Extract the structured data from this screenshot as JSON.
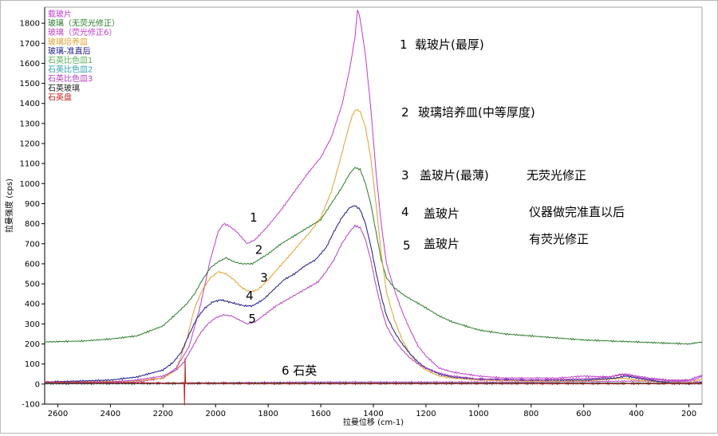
{
  "chart_data": {
    "type": "line",
    "title": "",
    "xlabel": "拉曼位移 (cm-1)",
    "ylabel": "拉曼强度 (cps)",
    "xlim": [
      2650,
      150
    ],
    "ylim": [
      -100,
      1880
    ],
    "x_reversed": true,
    "grid": false,
    "legend_position": "top-left",
    "x_ticks": [
      "2600",
      "2400",
      "2200",
      "2000",
      "1800",
      "1600",
      "1400",
      "1200",
      "1000",
      "800",
      "600",
      "400",
      "200"
    ],
    "y_ticks": [
      "-100",
      "0",
      "100",
      "200",
      "300",
      "400",
      "500",
      "600",
      "700",
      "800",
      "900",
      "1000",
      "1100",
      "1200",
      "1300",
      "1400",
      "1500",
      "1600",
      "1700",
      "1800"
    ],
    "series": [
      {
        "name": "载玻片",
        "color": "#c03cc8",
        "label": "1",
        "points": [
          [
            2650,
            5
          ],
          [
            2300,
            10
          ],
          [
            2200,
            30
          ],
          [
            2150,
            80
          ],
          [
            2100,
            190
          ],
          [
            2060,
            380
          ],
          [
            2020,
            620
          ],
          [
            1990,
            760
          ],
          [
            1970,
            800
          ],
          [
            1950,
            790
          ],
          [
            1920,
            760
          ],
          [
            1880,
            700
          ],
          [
            1850,
            720
          ],
          [
            1800,
            790
          ],
          [
            1750,
            870
          ],
          [
            1700,
            960
          ],
          [
            1650,
            1050
          ],
          [
            1600,
            1130
          ],
          [
            1560,
            1230
          ],
          [
            1520,
            1390
          ],
          [
            1490,
            1570
          ],
          [
            1470,
            1730
          ],
          [
            1460,
            1870
          ],
          [
            1450,
            1820
          ],
          [
            1430,
            1640
          ],
          [
            1410,
            1380
          ],
          [
            1390,
            1060
          ],
          [
            1370,
            800
          ],
          [
            1350,
            600
          ],
          [
            1320,
            470
          ],
          [
            1290,
            360
          ],
          [
            1260,
            270
          ],
          [
            1230,
            190
          ],
          [
            1200,
            140
          ],
          [
            1150,
            80
          ],
          [
            1100,
            60
          ],
          [
            1000,
            40
          ],
          [
            900,
            30
          ],
          [
            800,
            30
          ],
          [
            700,
            30
          ],
          [
            600,
            40
          ],
          [
            500,
            35
          ],
          [
            460,
            50
          ],
          [
            420,
            40
          ],
          [
            350,
            25
          ],
          [
            250,
            15
          ],
          [
            180,
            20
          ],
          [
            150,
            40
          ]
        ]
      },
      {
        "name": "玻璃（无荧光修正）",
        "color": "#2a7a2a",
        "label": "2",
        "points": [
          [
            2650,
            210
          ],
          [
            2500,
            215
          ],
          [
            2400,
            225
          ],
          [
            2300,
            240
          ],
          [
            2200,
            290
          ],
          [
            2150,
            350
          ],
          [
            2110,
            400
          ],
          [
            2080,
            450
          ],
          [
            2050,
            520
          ],
          [
            2020,
            580
          ],
          [
            1990,
            610
          ],
          [
            1960,
            630
          ],
          [
            1930,
            610
          ],
          [
            1900,
            600
          ],
          [
            1860,
            600
          ],
          [
            1800,
            650
          ],
          [
            1750,
            700
          ],
          [
            1700,
            740
          ],
          [
            1650,
            780
          ],
          [
            1600,
            820
          ],
          [
            1560,
            900
          ],
          [
            1520,
            980
          ],
          [
            1490,
            1050
          ],
          [
            1470,
            1080
          ],
          [
            1450,
            1070
          ],
          [
            1430,
            1000
          ],
          [
            1410,
            900
          ],
          [
            1390,
            760
          ],
          [
            1370,
            620
          ],
          [
            1350,
            530
          ],
          [
            1320,
            480
          ],
          [
            1280,
            440
          ],
          [
            1240,
            410
          ],
          [
            1200,
            380
          ],
          [
            1150,
            340
          ],
          [
            1100,
            310
          ],
          [
            1000,
            270
          ],
          [
            900,
            250
          ],
          [
            800,
            240
          ],
          [
            700,
            230
          ],
          [
            600,
            220
          ],
          [
            500,
            215
          ],
          [
            400,
            210
          ],
          [
            300,
            205
          ],
          [
            200,
            200
          ],
          [
            150,
            210
          ]
        ]
      },
      {
        "name": "玻璃（荧光修正6）",
        "color": "#c03cc8",
        "points": [
          [
            2650,
            5
          ],
          [
            2200,
            5
          ],
          [
            1600,
            10
          ],
          [
            1200,
            10
          ],
          [
            800,
            10
          ],
          [
            400,
            15
          ],
          [
            150,
            10
          ]
        ]
      },
      {
        "name": "玻璃培养皿",
        "color": "#e0a030",
        "label": "3",
        "points": [
          [
            2650,
            10
          ],
          [
            2300,
            15
          ],
          [
            2200,
            30
          ],
          [
            2150,
            70
          ],
          [
            2110,
            220
          ],
          [
            2080,
            380
          ],
          [
            2050,
            470
          ],
          [
            2020,
            530
          ],
          [
            1990,
            560
          ],
          [
            1960,
            550
          ],
          [
            1930,
            520
          ],
          [
            1900,
            480
          ],
          [
            1870,
            460
          ],
          [
            1840,
            470
          ],
          [
            1800,
            520
          ],
          [
            1760,
            580
          ],
          [
            1720,
            640
          ],
          [
            1680,
            700
          ],
          [
            1640,
            760
          ],
          [
            1600,
            830
          ],
          [
            1560,
            960
          ],
          [
            1530,
            1100
          ],
          [
            1500,
            1250
          ],
          [
            1480,
            1340
          ],
          [
            1465,
            1370
          ],
          [
            1450,
            1360
          ],
          [
            1430,
            1280
          ],
          [
            1410,
            1130
          ],
          [
            1390,
            900
          ],
          [
            1370,
            650
          ],
          [
            1350,
            460
          ],
          [
            1320,
            320
          ],
          [
            1290,
            220
          ],
          [
            1260,
            150
          ],
          [
            1230,
            100
          ],
          [
            1200,
            70
          ],
          [
            1150,
            40
          ],
          [
            1100,
            30
          ],
          [
            1000,
            20
          ],
          [
            800,
            15
          ],
          [
            600,
            15
          ],
          [
            450,
            30
          ],
          [
            400,
            20
          ],
          [
            300,
            10
          ],
          [
            200,
            5
          ],
          [
            150,
            25
          ]
        ]
      },
      {
        "name": "玻璃-准直后",
        "color": "#1a1a8a",
        "label": "4",
        "points": [
          [
            2650,
            10
          ],
          [
            2400,
            20
          ],
          [
            2300,
            35
          ],
          [
            2200,
            70
          ],
          [
            2160,
            110
          ],
          [
            2130,
            160
          ],
          [
            2100,
            250
          ],
          [
            2070,
            330
          ],
          [
            2040,
            380
          ],
          [
            2010,
            410
          ],
          [
            1980,
            420
          ],
          [
            1950,
            410
          ],
          [
            1920,
            400
          ],
          [
            1890,
            390
          ],
          [
            1860,
            390
          ],
          [
            1820,
            420
          ],
          [
            1780,
            470
          ],
          [
            1740,
            520
          ],
          [
            1700,
            550
          ],
          [
            1660,
            590
          ],
          [
            1620,
            620
          ],
          [
            1580,
            680
          ],
          [
            1550,
            760
          ],
          [
            1520,
            830
          ],
          [
            1490,
            880
          ],
          [
            1470,
            890
          ],
          [
            1450,
            870
          ],
          [
            1430,
            800
          ],
          [
            1410,
            690
          ],
          [
            1390,
            560
          ],
          [
            1370,
            440
          ],
          [
            1350,
            340
          ],
          [
            1320,
            260
          ],
          [
            1290,
            200
          ],
          [
            1260,
            150
          ],
          [
            1230,
            110
          ],
          [
            1200,
            80
          ],
          [
            1150,
            50
          ],
          [
            1100,
            35
          ],
          [
            1000,
            25
          ],
          [
            800,
            20
          ],
          [
            600,
            20
          ],
          [
            480,
            30
          ],
          [
            440,
            40
          ],
          [
            400,
            30
          ],
          [
            300,
            10
          ],
          [
            200,
            0
          ],
          [
            150,
            10
          ]
        ]
      },
      {
        "name": "石英比色皿1",
        "color": "#5ab05a",
        "points": [
          [
            2650,
            5
          ],
          [
            2000,
            5
          ],
          [
            1500,
            5
          ],
          [
            1000,
            5
          ],
          [
            500,
            5
          ],
          [
            150,
            5
          ]
        ]
      },
      {
        "name": "石英比色皿2",
        "color": "#30a0b0",
        "points": [
          [
            2650,
            3
          ],
          [
            2000,
            3
          ],
          [
            1500,
            4
          ],
          [
            1000,
            4
          ],
          [
            500,
            4
          ],
          [
            150,
            3
          ]
        ]
      },
      {
        "name": "石英比色皿3",
        "color": "#b040c0",
        "label": "5",
        "points": [
          [
            2650,
            10
          ],
          [
            2400,
            10
          ],
          [
            2300,
            20
          ],
          [
            2200,
            40
          ],
          [
            2150,
            70
          ],
          [
            2120,
            110
          ],
          [
            2090,
            180
          ],
          [
            2060,
            250
          ],
          [
            2030,
            300
          ],
          [
            2000,
            330
          ],
          [
            1970,
            345
          ],
          [
            1940,
            340
          ],
          [
            1910,
            320
          ],
          [
            1880,
            300
          ],
          [
            1850,
            310
          ],
          [
            1810,
            350
          ],
          [
            1770,
            390
          ],
          [
            1730,
            420
          ],
          [
            1690,
            450
          ],
          [
            1650,
            480
          ],
          [
            1610,
            510
          ],
          [
            1580,
            560
          ],
          [
            1550,
            620
          ],
          [
            1520,
            700
          ],
          [
            1490,
            760
          ],
          [
            1470,
            790
          ],
          [
            1450,
            780
          ],
          [
            1430,
            720
          ],
          [
            1410,
            620
          ],
          [
            1390,
            490
          ],
          [
            1370,
            380
          ],
          [
            1350,
            290
          ],
          [
            1320,
            220
          ],
          [
            1290,
            170
          ],
          [
            1260,
            130
          ],
          [
            1230,
            100
          ],
          [
            1200,
            80
          ],
          [
            1150,
            55
          ],
          [
            1100,
            40
          ],
          [
            1000,
            25
          ],
          [
            800,
            20
          ],
          [
            650,
            25
          ],
          [
            550,
            30
          ],
          [
            480,
            40
          ],
          [
            440,
            50
          ],
          [
            400,
            40
          ],
          [
            350,
            30
          ],
          [
            280,
            20
          ],
          [
            200,
            20
          ],
          [
            150,
            45
          ]
        ]
      },
      {
        "name": "石英玻璃",
        "color": "#222222",
        "points": [
          [
            2650,
            2
          ],
          [
            2000,
            3
          ],
          [
            1500,
            3
          ],
          [
            1000,
            3
          ],
          [
            500,
            3
          ],
          [
            150,
            2
          ]
        ]
      },
      {
        "name": "石英盘",
        "color": "#c02020",
        "label": "6",
        "points": [
          [
            2650,
            8
          ],
          [
            2300,
            6
          ],
          [
            2150,
            4
          ],
          [
            2120,
            2
          ],
          [
            2118,
            -110
          ],
          [
            2116,
            130
          ],
          [
            2114,
            4
          ],
          [
            2000,
            3
          ],
          [
            1800,
            2
          ],
          [
            1500,
            2
          ],
          [
            1200,
            2
          ],
          [
            1000,
            2
          ],
          [
            800,
            2
          ],
          [
            600,
            2
          ],
          [
            400,
            2
          ],
          [
            150,
            3
          ]
        ]
      }
    ]
  },
  "annotations": [
    {
      "number": "1",
      "text": "载玻片(最厚)"
    },
    {
      "number": "2",
      "text": "玻璃培养皿(中等厚度)"
    },
    {
      "number": "3",
      "text": "盖玻片(最薄)",
      "extra": "无荧光修正"
    },
    {
      "number": "4",
      "text": "盖玻片",
      "extra": "仪器做完准直以后"
    },
    {
      "number": "5",
      "text": "盖玻片",
      "extra": "有荧光修正"
    }
  ],
  "quartz_label": "6  石英"
}
